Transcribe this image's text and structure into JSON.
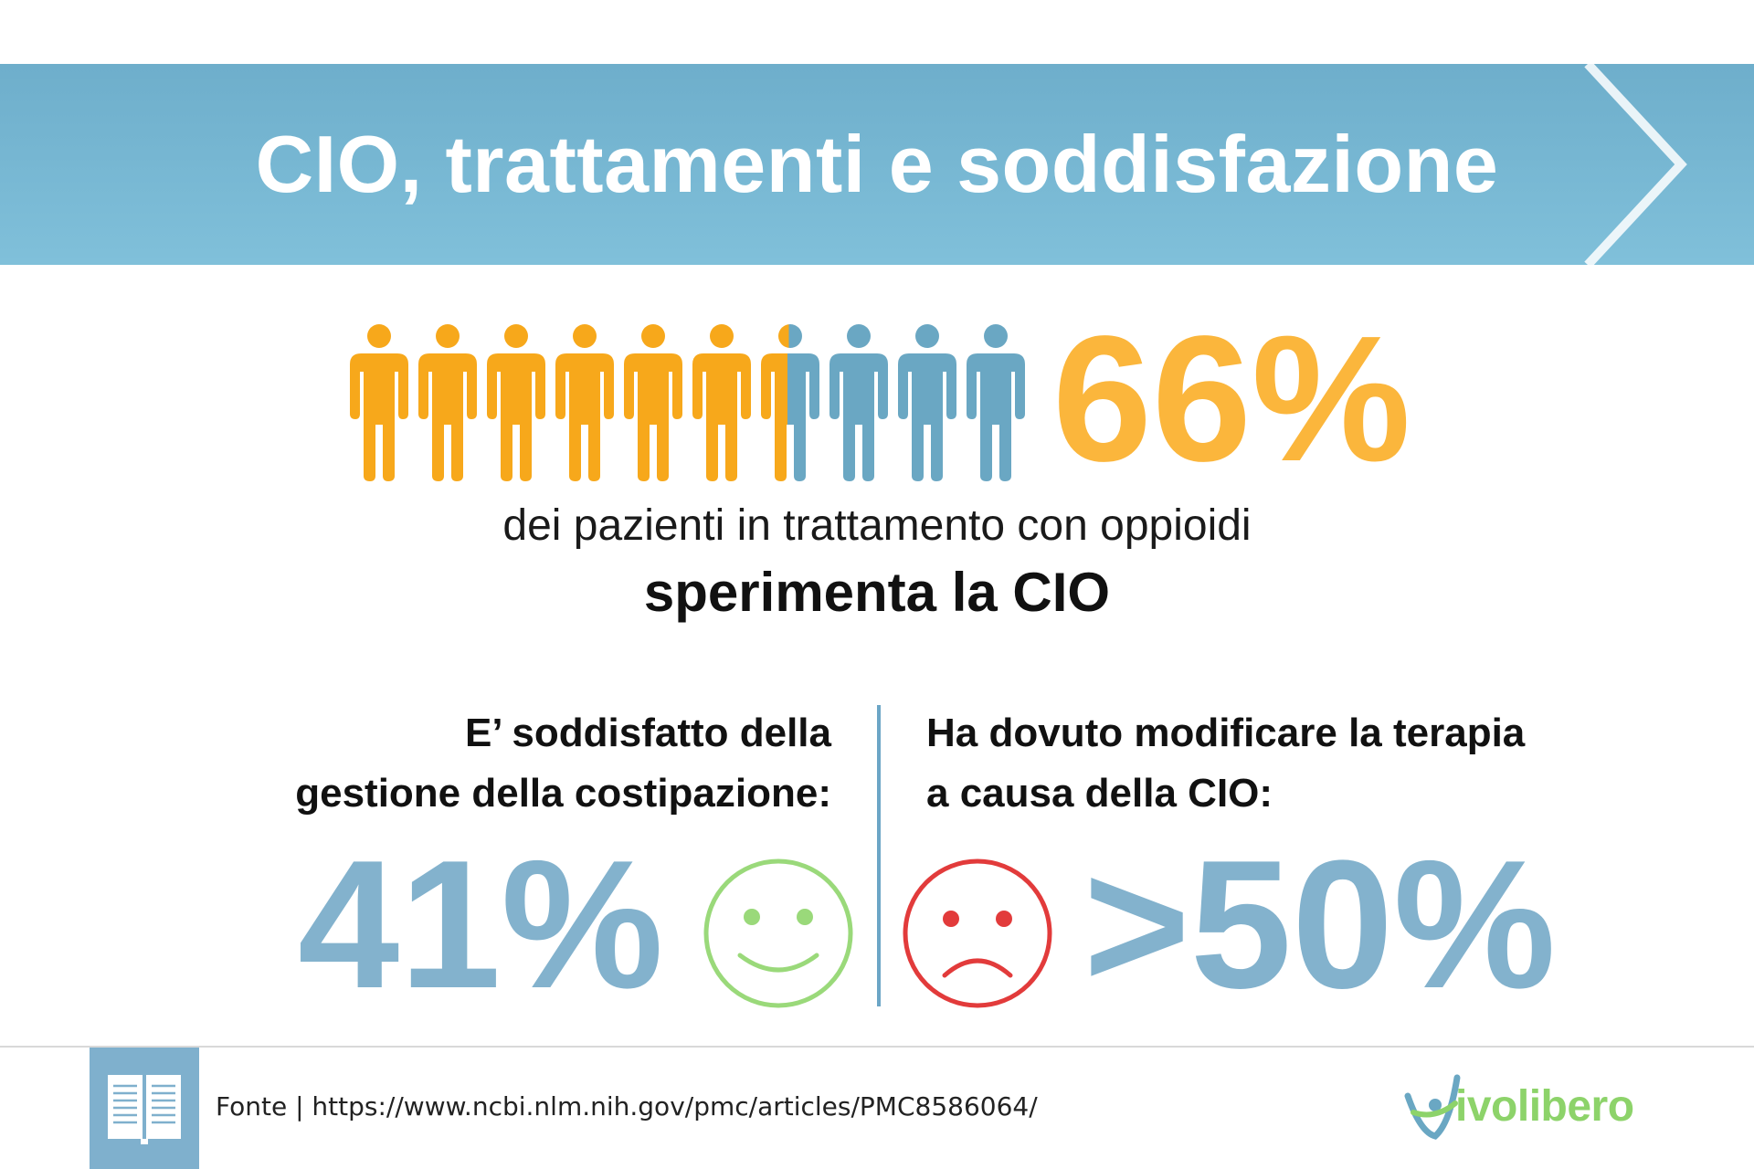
{
  "header": {
    "title": "CIO, trattamenti e soddisfazione"
  },
  "stat_main": {
    "value": "66%",
    "filled_fraction": 0.66,
    "line1": "dei pazienti in trattamento con oppioidi",
    "line2": "sperimenta la CIO"
  },
  "left_panel": {
    "label_line1": "E’ soddisfatto della",
    "label_line2": "gestione della costipazione:",
    "value": "41%",
    "icon": "smiley-face-icon"
  },
  "right_panel": {
    "label_line1": "Ha dovuto modificare la terapia",
    "label_line2": "a causa della CIO:",
    "value": ">50%",
    "icon": "sad-face-icon"
  },
  "footer": {
    "source": "Fonte | https://www.ncbi.nlm.nih.gov/pmc/articles/PMC8586064/",
    "logo_text": "ivolibero",
    "book_icon": "open-book-icon"
  },
  "colors": {
    "banner": "#78b8d4",
    "accent_orange": "#fbb63c",
    "person_orange": "#f7a81b",
    "person_blue": "#6aa7c3",
    "stat_blue": "#83b2cd",
    "smiley_green": "#9ad97a",
    "sad_red": "#e23b3b",
    "logo_green": "#8dd36a"
  }
}
